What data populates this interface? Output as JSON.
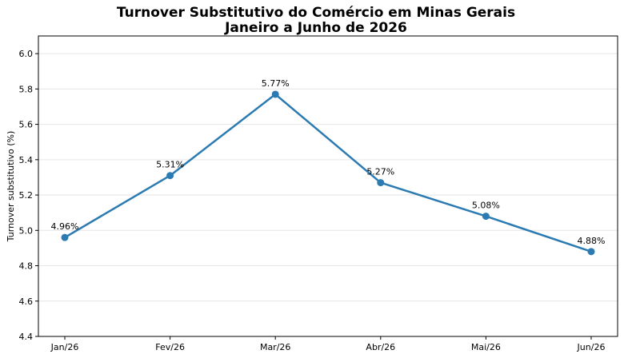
{
  "chart_data": {
    "type": "line",
    "title": [
      "Turnover Substitutivo do Comércio em Minas Gerais",
      "Janeiro a Junho de 2026"
    ],
    "xlabel": "",
    "ylabel": "Turnover substitutivo (%)",
    "categories": [
      "Jan/26",
      "Fev/26",
      "Mar/26",
      "Abr/26",
      "Mai/26",
      "Jun/26"
    ],
    "series": [
      {
        "values": [
          4.96,
          5.31,
          5.77,
          5.27,
          5.08,
          4.88
        ],
        "labels": [
          "4.96%",
          "5.31%",
          "5.77%",
          "5.27%",
          "5.08%",
          "4.88%"
        ]
      }
    ],
    "ylim": [
      4.4,
      6.1
    ],
    "yticks": [
      4.4,
      4.6,
      4.8,
      5.0,
      5.2,
      5.4,
      5.6,
      5.8,
      6.0
    ],
    "ytick_labels": [
      "4.4",
      "4.6",
      "4.8",
      "5.0",
      "5.2",
      "5.4",
      "5.6",
      "5.8",
      "6.0"
    ],
    "grid": "horizontal",
    "line_color": "#2b7bb2"
  }
}
